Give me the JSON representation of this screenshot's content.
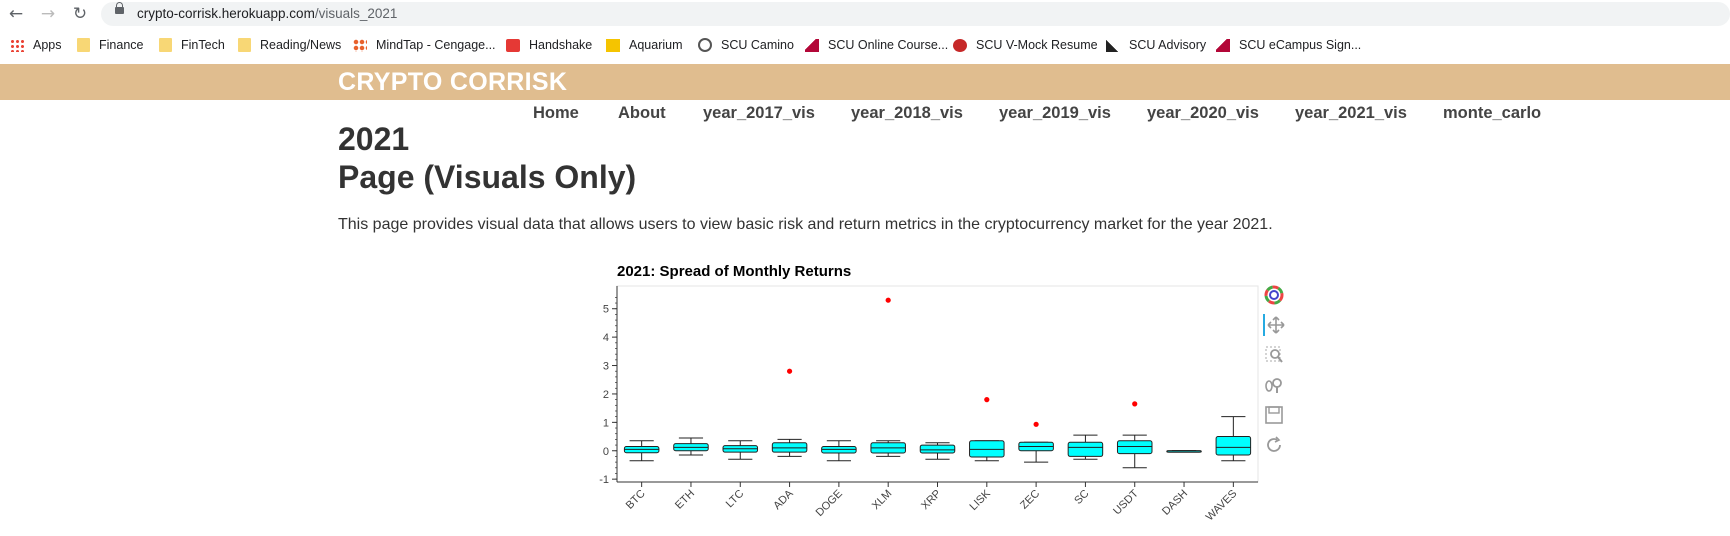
{
  "browser": {
    "url_host": "crypto-corrisk.herokuapp.com",
    "url_path": "/visuals_2021",
    "nav": {
      "back_icon": "arrow-left-icon",
      "forward_icon": "arrow-right-icon",
      "reload_icon": "reload-icon"
    }
  },
  "bookmarks": [
    {
      "label": "Apps",
      "icon": "apps-grid-icon"
    },
    {
      "label": "Finance",
      "icon": "folder-icon"
    },
    {
      "label": "FinTech",
      "icon": "folder-icon"
    },
    {
      "label": "Reading/News",
      "icon": "folder-icon"
    },
    {
      "label": "MindTap - Cengage...",
      "icon": "mindtap-icon"
    },
    {
      "label": "Handshake",
      "icon": "handshake-icon"
    },
    {
      "label": "Aquarium",
      "icon": "aquarium-icon"
    },
    {
      "label": "SCU Camino",
      "icon": "globe-icon"
    },
    {
      "label": "SCU Online Course...",
      "icon": "scu-icon"
    },
    {
      "label": "SCU V-Mock Resume",
      "icon": "vmock-icon"
    },
    {
      "label": "SCU Advisory",
      "icon": "advisory-icon"
    },
    {
      "label": "SCU eCampus Sign...",
      "icon": "scu-icon"
    }
  ],
  "site": {
    "title": "CRYPTO CORRISK",
    "nav": [
      "Home",
      "About",
      "year_2017_vis",
      "year_2018_vis",
      "year_2019_vis",
      "year_2020_vis",
      "year_2021_vis",
      "monte_carlo"
    ],
    "heading_line1": "2021",
    "heading_line2": "Page (Visuals Only)",
    "intro": "This page provides visual data that allows users to view basic risk and return metrics in the cryptocurrency market for the year 2021."
  },
  "colors": {
    "banner": "#e0bd8f",
    "box_fill": "#00ffff",
    "outlier": "#ff0000"
  },
  "toolbar": [
    "bokeh-logo-icon",
    "pan-icon",
    "box-zoom-icon",
    "wheel-zoom-icon",
    "save-icon",
    "reset-icon"
  ],
  "chart_data": {
    "type": "box",
    "title": "2021: Spread of Monthly Returns",
    "xlabel": "",
    "ylabel": "",
    "ylim": [
      -1.1,
      5.8
    ],
    "yticks": [
      -1,
      0,
      1,
      2,
      3,
      4,
      5
    ],
    "categories": [
      "BTC",
      "ETH",
      "LTC",
      "ADA",
      "DOGE",
      "XLM",
      "XRP",
      "LISK",
      "ZEC",
      "SC",
      "USDT",
      "DASH",
      "WAVES"
    ],
    "boxes": [
      {
        "name": "BTC",
        "lower": -0.35,
        "q1": -0.07,
        "median": 0.05,
        "q3": 0.15,
        "upper": 0.35
      },
      {
        "name": "ETH",
        "lower": -0.15,
        "q1": 0.0,
        "median": 0.12,
        "q3": 0.25,
        "upper": 0.45
      },
      {
        "name": "LTC",
        "lower": -0.3,
        "q1": -0.05,
        "median": 0.07,
        "q3": 0.18,
        "upper": 0.35
      },
      {
        "name": "ADA",
        "lower": -0.2,
        "q1": -0.05,
        "median": 0.1,
        "q3": 0.28,
        "upper": 0.4
      },
      {
        "name": "DOGE",
        "lower": -0.35,
        "q1": -0.08,
        "median": 0.05,
        "q3": 0.15,
        "upper": 0.35
      },
      {
        "name": "XLM",
        "lower": -0.2,
        "q1": -0.08,
        "median": 0.1,
        "q3": 0.28,
        "upper": 0.35
      },
      {
        "name": "XRP",
        "lower": -0.3,
        "q1": -0.08,
        "median": 0.03,
        "q3": 0.2,
        "upper": 0.28
      },
      {
        "name": "LISK",
        "lower": -0.35,
        "q1": -0.22,
        "median": 0.05,
        "q3": 0.35,
        "upper": 0.35
      },
      {
        "name": "ZEC",
        "lower": -0.4,
        "q1": 0.0,
        "median": 0.15,
        "q3": 0.3,
        "upper": 0.3
      },
      {
        "name": "SC",
        "lower": -0.3,
        "q1": -0.2,
        "median": 0.12,
        "q3": 0.3,
        "upper": 0.55
      },
      {
        "name": "USDT",
        "lower": -0.6,
        "q1": -0.1,
        "median": 0.15,
        "q3": 0.35,
        "upper": 0.55
      },
      {
        "name": "DASH",
        "lower": 0.0,
        "q1": 0.0,
        "median": 0.0,
        "q3": 0.0,
        "upper": 0.0
      },
      {
        "name": "WAVES",
        "lower": -0.35,
        "q1": -0.15,
        "median": 0.12,
        "q3": 0.5,
        "upper": 1.2
      }
    ],
    "outliers": [
      {
        "category": "ADA",
        "y": 2.8
      },
      {
        "category": "XLM",
        "y": 5.3
      },
      {
        "category": "LISK",
        "y": 1.8
      },
      {
        "category": "ZEC",
        "y": 0.93
      },
      {
        "category": "USDT",
        "y": 1.65
      }
    ],
    "grid": false,
    "legend": "none"
  }
}
